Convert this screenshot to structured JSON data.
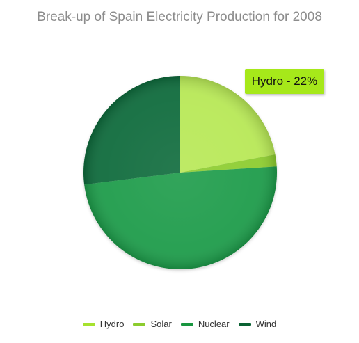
{
  "colors": {
    "hydro": "#a6e22e",
    "solar": "#8ccc2e",
    "nuclear": "#18963f",
    "wind": "#0a6233",
    "tooltip_bg": "#a6e81a"
  },
  "tooltip": {
    "text": "Hydro - 22%"
  },
  "chart_data": {
    "type": "pie",
    "title": "Break-up of Spain Electricity Production for 2008",
    "start_angle_deg": 90,
    "direction": "clockwise",
    "slices": [
      {
        "name": "Hydro",
        "value": 22,
        "color": "#b7e855"
      },
      {
        "name": "Solar",
        "value": 2,
        "color": "#8ccc2e"
      },
      {
        "name": "Nuclear",
        "value": 49,
        "color": "#1d9b48"
      },
      {
        "name": "Wind",
        "value": 27,
        "color": "#0d6b3a"
      }
    ],
    "legend": {
      "position": "bottom",
      "items": [
        {
          "name": "Hydro",
          "color": "#a6e22e"
        },
        {
          "name": "Solar",
          "color": "#8ccc2e"
        },
        {
          "name": "Nuclear",
          "color": "#18963f"
        },
        {
          "name": "Wind",
          "color": "#0a6233"
        }
      ]
    }
  }
}
